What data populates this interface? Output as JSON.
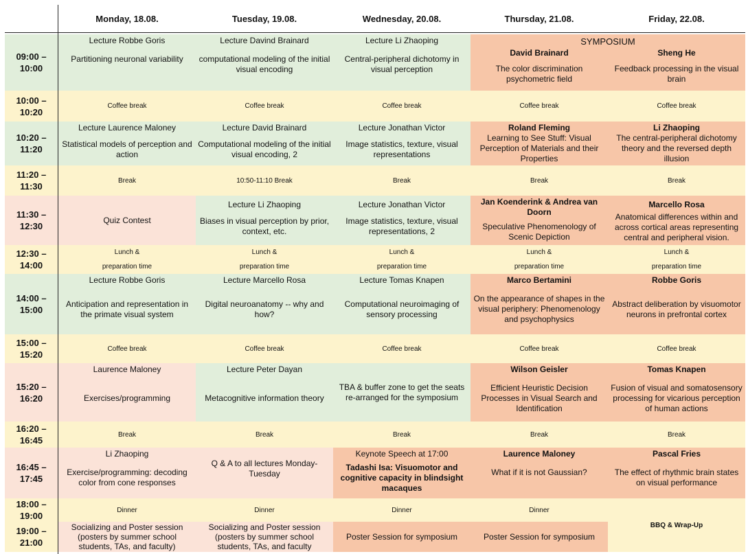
{
  "days": [
    "Monday, 18.08.",
    "Tuesday, 19.08.",
    "Wednesday, 20.08.",
    "Thursday, 21.08.",
    "Friday, 22.08."
  ],
  "times": [
    {
      "a": "09:00 –",
      "b": "10:00"
    },
    {
      "a": "10:00 –",
      "b": "10:20"
    },
    {
      "a": "10:20 –",
      "b": "11:20"
    },
    {
      "a": "11:20 –",
      "b": "11:30"
    },
    {
      "a": "11:30 –",
      "b": "12:30"
    },
    {
      "a": "12:30 –",
      "b": "14:00"
    },
    {
      "a": "14:00 –",
      "b": "15:00"
    },
    {
      "a": "15:00 –",
      "b": "15:20"
    },
    {
      "a": "15:20 –",
      "b": "16:20"
    },
    {
      "a": "16:20 –",
      "b": "16:45"
    },
    {
      "a": "16:45 –",
      "b": "17:45"
    },
    {
      "a": "18:00 –",
      "b": "19:00"
    },
    {
      "a": "19:00 –",
      "b": "21:00"
    }
  ],
  "symposium": "SYMPOSIUM",
  "r0": {
    "mon": {
      "t": "Lecture Robbe Goris",
      "d": "Partitioning neuronal variability"
    },
    "tue": {
      "t": "Lecture Davind Brainard",
      "d": "computational modeling of the initial visual encoding"
    },
    "wed": {
      "t": "Lecture Li Zhaoping",
      "d": "Central-peripheral dichotomy in visual  perception"
    },
    "thu": {
      "t": "David Brainard",
      "d": "The color discrimination psychometric field"
    },
    "fri": {
      "t": "Sheng He",
      "d": "Feedback processing in the visual brain"
    }
  },
  "coffee": "Coffee break",
  "brk": "Break",
  "brk_tue": "10:50-11:10 Break",
  "r2": {
    "mon": {
      "t": "Lecture Laurence Maloney",
      "d": "Statistical models of perception and action"
    },
    "tue": {
      "t": "Lecture David Brainard",
      "d": "Computational modeling of the initial visual encoding, 2"
    },
    "wed": {
      "t": "Lecture Jonathan Victor",
      "d": "Image statistics, texture, visual representations"
    },
    "thu": {
      "t": "Roland Fleming",
      "d": "Learning to See Stuff: Visual Perception of Materials and their Properties"
    },
    "fri": {
      "t": "Li Zhaoping",
      "d": "The central-peripheral dichotomy theory and the reversed depth illusion"
    }
  },
  "r4": {
    "mon": {
      "d": "Quiz Contest"
    },
    "tue": {
      "t": "Lecture Li Zhaoping",
      "d": "Biases in visual perception by prior, context, etc."
    },
    "wed": {
      "t": "Lecture Jonathan Victor",
      "d": "Image statistics, texture, visual representations, 2"
    },
    "thu": {
      "t": "Jan Koenderink & Andrea van Doorn",
      "d": "Speculative Phenomenology of Scenic Depiction"
    },
    "fri": {
      "t": "Marcello Rosa",
      "d": "Anatomical differences within and across cortical areas representing central and peripheral vision."
    }
  },
  "lunch": {
    "a": "Lunch &",
    "b": "preparation time"
  },
  "r6": {
    "mon": {
      "t": "Lecture Robbe Goris",
      "d": "Anticipation and representation in the primate visual system"
    },
    "tue": {
      "t": "Lecture Marcello Rosa",
      "d": "Digital neuroanatomy -- why and how?"
    },
    "wed": {
      "t": "Lecture Tomas Knapen",
      "d": "Computational neuroimaging of sensory processing"
    },
    "thu": {
      "t": "Marco Bertamini",
      "d": "On the appearance of shapes in the visual periphery: Phenomenology and psychophysics"
    },
    "fri": {
      "t": "Robbe Goris",
      "d": "Abstract deliberation by visuomotor neurons in prefrontal cortex"
    }
  },
  "r8": {
    "mon": {
      "t": "Laurence Maloney",
      "d": "Exercises/programming"
    },
    "tue": {
      "t": "Lecture Peter Dayan",
      "d": "Metacognitive information theory"
    },
    "wed": {
      "d": "TBA & buffer zone to get the seats re-arranged  for the symposium"
    },
    "thu": {
      "t": "Wilson Geisler",
      "d": "Efficient Heuristic Decision Processes in Visual Search and Identification"
    },
    "fri": {
      "t": "Tomas Knapen",
      "d": "Fusion of visual and somatosensory processing for vicarious perception of human actions"
    }
  },
  "r10": {
    "mon": {
      "t": "Li Zhaoping",
      "d": "Exercise/programming: decoding color from cone responses"
    },
    "tue": {
      "d": "Q & A  to all lectures Monday-Tuesday"
    },
    "wed": {
      "t": "Keynote Speech at 17:00",
      "d": "Tadashi Isa: Visuomotor and cognitive capacity in blindsight macaques"
    },
    "thu": {
      "t": "Laurence Maloney",
      "d": "What if it is not Gaussian?"
    },
    "fri": {
      "t": "Pascal Fries",
      "d": "The effect of rhythmic brain states on visual performance"
    }
  },
  "dinner": "Dinner",
  "r12": {
    "mon": "Socializing and Poster session (posters by summer school students, TAs, and faculty)",
    "tue": "Socializing and Poster session (posters by summer school students, TAs, and faculty",
    "wed": "Poster Session for symposium",
    "thu": "Poster Session for symposium",
    "fri": "BBQ & Wrap-Up"
  },
  "colors": {
    "green": "#e1eedb",
    "yellow": "#fdf3cc",
    "pink": "#fbe3d8",
    "orange": "#f7c6a8"
  }
}
